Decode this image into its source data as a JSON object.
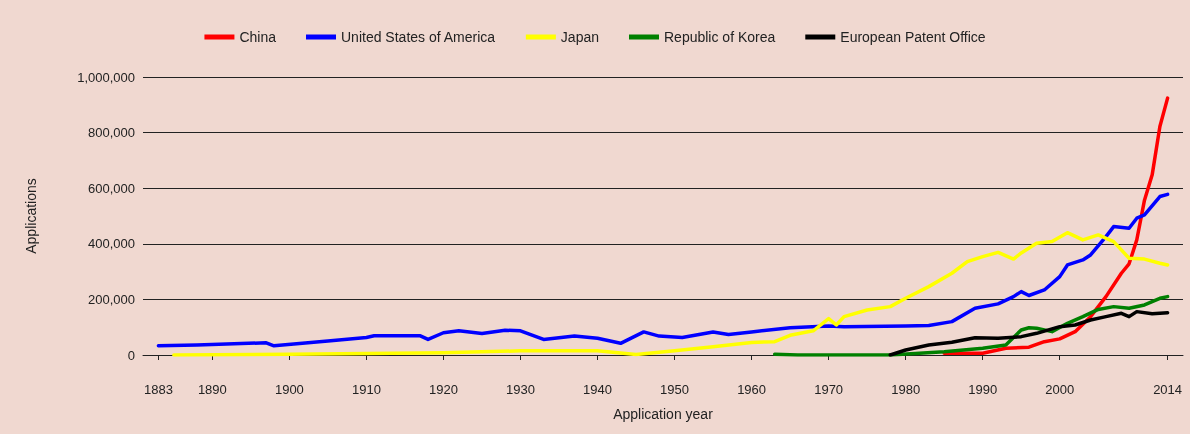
{
  "chart_data": {
    "type": "line",
    "xlabel": "Application year",
    "ylabel": "Applications",
    "xlim": [
      1881,
      2016
    ],
    "xticks": [
      1883,
      1890,
      1900,
      1910,
      1920,
      1930,
      1940,
      1950,
      1960,
      1970,
      1980,
      1990,
      2000,
      2014
    ],
    "ylim": [
      0,
      1000000
    ],
    "yticks": [
      0,
      {
        "value": 200000,
        "label": "200,000"
      },
      {
        "value": 400000,
        "label": "400,000"
      },
      {
        "value": 600000,
        "label": "600,000"
      },
      {
        "value": 800000,
        "label": "800,000"
      },
      {
        "value": 1000000,
        "label": "1,000,000"
      }
    ],
    "grid": "y",
    "legend": "top",
    "marker": "none",
    "line_style": "solid",
    "series": [
      {
        "name": "China",
        "color": "#ff0000",
        "x": [
          1985,
          1990,
          1993,
          1996,
          1998,
          2000,
          2002,
          2004,
          2006,
          2008,
          2009,
          2010,
          2011,
          2012,
          2013,
          2014
        ],
        "values": [
          6000,
          6000,
          24000,
          28000,
          48000,
          58000,
          84000,
          138000,
          210000,
          294000,
          328000,
          414000,
          557000,
          648000,
          822000,
          924000
        ]
      },
      {
        "name": "United States of America",
        "color": "#0000ff",
        "x": [
          1883,
          1888,
          1897,
          1898,
          1905,
          1910,
          1911,
          1917,
          1918,
          1920,
          1922,
          1925,
          1928,
          1930,
          1933,
          1937,
          1940,
          1943,
          1946,
          1948,
          1951,
          1955,
          1957,
          1960,
          1965,
          1970,
          1972,
          1980,
          1983,
          1986,
          1989,
          1992,
          1994,
          1995,
          1996,
          1998,
          2000,
          2001,
          2003,
          2004,
          2006,
          2007,
          2009,
          2010,
          2011,
          2013,
          2014
        ],
        "values": [
          33000,
          36000,
          44000,
          33000,
          50000,
          63000,
          69000,
          69000,
          56000,
          80000,
          87000,
          77000,
          89000,
          87000,
          56000,
          68000,
          60000,
          42000,
          83000,
          68000,
          63000,
          83000,
          74000,
          83000,
          98000,
          104000,
          102000,
          104000,
          106000,
          120000,
          168000,
          184000,
          210000,
          228000,
          214000,
          234000,
          282000,
          324000,
          342000,
          360000,
          426000,
          462000,
          456000,
          492000,
          504000,
          570000,
          578000
        ]
      },
      {
        "name": "Japan",
        "color": "#ffff00",
        "x": [
          1885,
          1900,
          1920,
          1930,
          1940,
          1945,
          1950,
          1955,
          1960,
          1963,
          1965,
          1968,
          1970,
          1971,
          1972,
          1975,
          1978,
          1980,
          1983,
          1986,
          1988,
          1990,
          1992,
          1994,
          1995,
          1997,
          1999,
          2001,
          2003,
          2005,
          2007,
          2009,
          2011,
          2013,
          2014
        ],
        "values": [
          0,
          3000,
          8000,
          15000,
          15000,
          2000,
          15000,
          30000,
          45000,
          48000,
          71000,
          87000,
          131000,
          108000,
          138000,
          162000,
          174000,
          204000,
          246000,
          294000,
          336000,
          354000,
          369000,
          345000,
          367000,
          402000,
          408000,
          440000,
          414000,
          432000,
          408000,
          348000,
          345000,
          330000,
          324000
        ]
      },
      {
        "name": "Republic of Korea",
        "color": "#008000",
        "x": [
          1963,
          1966,
          1978,
          1985,
          1990,
          1993,
          1995,
          1996,
          1997,
          1999,
          2001,
          2003,
          2005,
          2007,
          2009,
          2011,
          2013,
          2014
        ],
        "values": [
          3000,
          0,
          0,
          12000,
          24000,
          36000,
          90000,
          98000,
          96000,
          84000,
          114000,
          138000,
          164000,
          174000,
          168000,
          180000,
          204000,
          210000
        ]
      },
      {
        "name": "European Patent Office",
        "color": "#000000",
        "x": [
          1978,
          1980,
          1983,
          1986,
          1989,
          1992,
          1995,
          1997,
          2000,
          2002,
          2004,
          2006,
          2008,
          2009,
          2010,
          2012,
          2014
        ],
        "values": [
          0,
          18000,
          36000,
          46000,
          62000,
          60000,
          66000,
          78000,
          102000,
          108000,
          126000,
          138000,
          150000,
          138000,
          156000,
          148000,
          152000
        ]
      }
    ]
  }
}
